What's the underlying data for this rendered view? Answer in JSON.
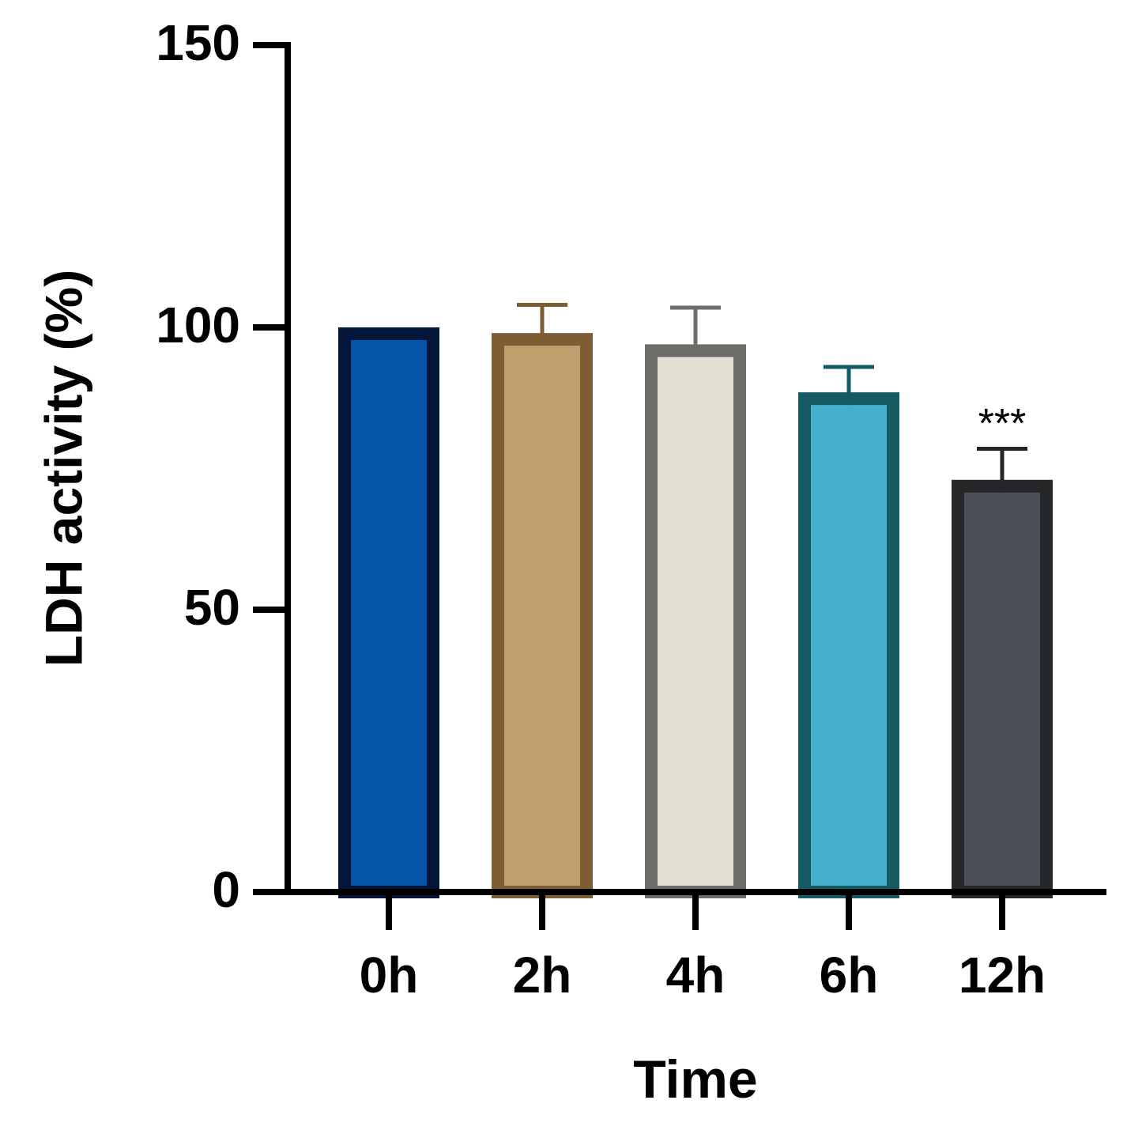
{
  "chart_data": {
    "type": "bar",
    "y_label": "LDH activity (%)",
    "x_label": "Time",
    "categories": [
      "0h",
      "2h",
      "4h",
      "6h",
      "12h"
    ],
    "values": [
      100,
      99,
      97,
      88.5,
      73
    ],
    "errors": [
      0,
      5,
      6.5,
      4.5,
      5.5
    ],
    "colors": [
      "#0455a8",
      "#c19f6f",
      "#e4dfd3",
      "#45b0cb",
      "#4b4f57"
    ],
    "edge_colors": [
      "#04163a",
      "#7d5e34",
      "#6e6c68",
      "#165a64",
      "#242628"
    ],
    "ylim": [
      0,
      150
    ],
    "yticks": [
      0,
      50,
      100,
      150
    ],
    "annotations": [
      {
        "text": "***",
        "category": "12h"
      }
    ]
  }
}
